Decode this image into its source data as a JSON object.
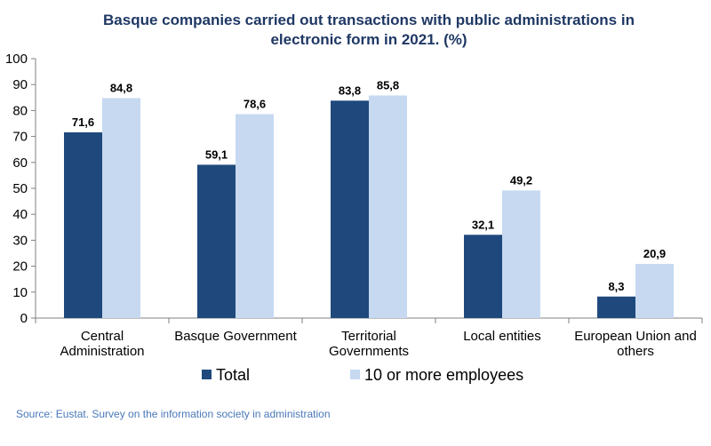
{
  "chart_data": {
    "type": "bar",
    "title_lines": [
      "Basque companies carried out transactions with public administrations in",
      "electronic form in 2021. (%)"
    ],
    "categories": [
      [
        "Central",
        "Administration"
      ],
      [
        "Basque Government"
      ],
      [
        "Territorial",
        "Governments"
      ],
      [
        "Local entities"
      ],
      [
        "European Union and",
        "others"
      ]
    ],
    "series": [
      {
        "name": "Total",
        "values": [
          71.6,
          59.1,
          83.8,
          32.1,
          8.3
        ],
        "labels": [
          "71,6",
          "59,1",
          "83,8",
          "32,1",
          "8,3"
        ],
        "color": "#1f497d"
      },
      {
        "name": "10 or more employees",
        "values": [
          84.8,
          78.6,
          85.8,
          49.2,
          20.9
        ],
        "labels": [
          "84,8",
          "78,6",
          "85,8",
          "49,2",
          "20,9"
        ],
        "color": "#c6d9f1"
      }
    ],
    "ylim": [
      0,
      100
    ],
    "yticks": [
      0,
      10,
      20,
      30,
      40,
      50,
      60,
      70,
      80,
      90,
      100
    ],
    "grid": false,
    "legend_position": "bottom"
  },
  "source": "Source: Eustat. Survey on the information society in administration"
}
